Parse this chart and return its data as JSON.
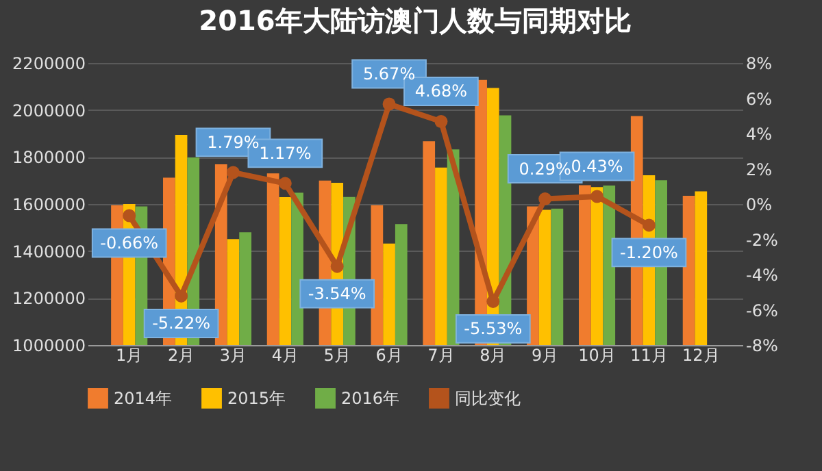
{
  "chart_data": {
    "type": "bar",
    "title": "2016年大陆访澳门人数与同期对比",
    "categories": [
      "1月",
      "2月",
      "3月",
      "4月",
      "5月",
      "6月",
      "7月",
      "8月",
      "9月",
      "10月",
      "11月",
      "12月"
    ],
    "series": [
      {
        "name": "2014年",
        "color": "#f07c2e",
        "values": [
          1595000,
          1712000,
          1769000,
          1730000,
          1700000,
          1595000,
          1867000,
          2128000,
          1590000,
          1680000,
          1974000,
          1635000
        ]
      },
      {
        "name": "2015年",
        "color": "#ffc000",
        "values": [
          1600000,
          1894000,
          1451000,
          1629000,
          1690000,
          1432000,
          1755000,
          2094000,
          1575000,
          1672000,
          1722000,
          1654000
        ]
      },
      {
        "name": "2016年",
        "color": "#70ad47",
        "values": [
          1590000,
          1798000,
          1480000,
          1648000,
          1630000,
          1515000,
          1832000,
          1977000,
          1580000,
          1679000,
          1701000,
          null
        ]
      },
      {
        "name": "同比变化",
        "type": "line",
        "axis": "y2",
        "color": "#b4531c",
        "marker": "circle",
        "values": [
          -0.66,
          -5.22,
          1.79,
          1.17,
          -3.54,
          5.67,
          4.68,
          -5.53,
          0.29,
          0.43,
          -1.2,
          null
        ],
        "value_labels": [
          "-0.66%",
          "-5.22%",
          "1.79%",
          "1.17%",
          "-3.54%",
          "5.67%",
          "4.68%",
          "-5.53%",
          "0.29%",
          "0.43%",
          "-1.20%",
          null
        ]
      }
    ],
    "ylim": [
      1000000,
      2200000
    ],
    "yticks": [
      1000000,
      1200000,
      1400000,
      1600000,
      1800000,
      2000000,
      2200000
    ],
    "y2lim": [
      -8,
      8
    ],
    "y2ticks": [
      {
        "value": -8,
        "label": "-8%"
      },
      {
        "value": -6,
        "label": "-6%"
      },
      {
        "value": -4,
        "label": "-4%"
      },
      {
        "value": -2,
        "label": "-2%"
      },
      {
        "value": 0,
        "label": "0%"
      },
      {
        "value": 2,
        "label": "2%"
      },
      {
        "value": 4,
        "label": "4%"
      },
      {
        "value": 6,
        "label": "6%"
      },
      {
        "value": 8,
        "label": "8%"
      }
    ],
    "grid": "y",
    "legend": "bottom"
  }
}
